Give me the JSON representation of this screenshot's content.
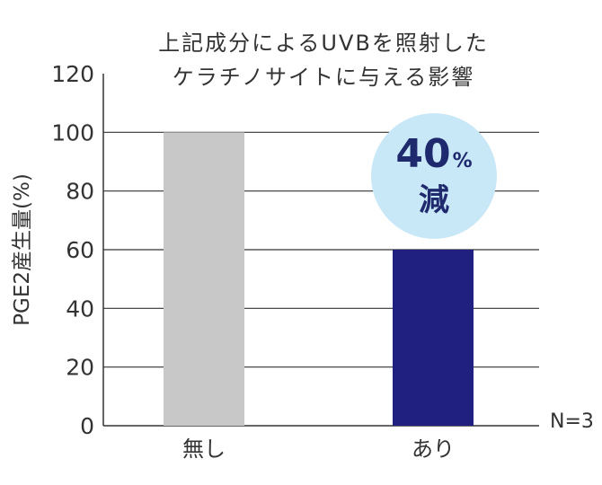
{
  "chart_data": {
    "type": "bar",
    "title_lines": [
      "上記成分によるUVBを照射した",
      "ケラチノサイトに与える影響"
    ],
    "ylabel": "PGE2産生量(%)",
    "xlabel": "",
    "categories": [
      "無し",
      "あり"
    ],
    "values": [
      100,
      60
    ],
    "bar_colors": [
      "#c8c8c8",
      "#1f2080"
    ],
    "ylim": [
      0,
      120
    ],
    "yticks": [
      0,
      20,
      40,
      60,
      80,
      100,
      120
    ],
    "grid": true,
    "note": "N=3",
    "annotation": {
      "value": "40",
      "unit": "%",
      "text": "減",
      "color": "#1f2a6e",
      "background": "#c9e8f7"
    }
  }
}
